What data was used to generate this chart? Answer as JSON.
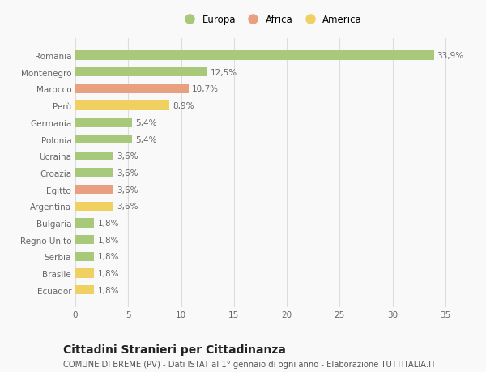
{
  "categories": [
    "Romania",
    "Montenegro",
    "Marocco",
    "Perù",
    "Germania",
    "Polonia",
    "Ucraina",
    "Croazia",
    "Egitto",
    "Argentina",
    "Bulgaria",
    "Regno Unito",
    "Serbia",
    "Brasile",
    "Ecuador"
  ],
  "values": [
    33.9,
    12.5,
    10.7,
    8.9,
    5.4,
    5.4,
    3.6,
    3.6,
    3.6,
    3.6,
    1.8,
    1.8,
    1.8,
    1.8,
    1.8
  ],
  "continents": [
    "Europa",
    "Europa",
    "Africa",
    "America",
    "Europa",
    "Europa",
    "Europa",
    "Europa",
    "Africa",
    "America",
    "Europa",
    "Europa",
    "Europa",
    "America",
    "America"
  ],
  "colors": {
    "Europa": "#a8c87a",
    "Africa": "#e8a080",
    "America": "#f0d060"
  },
  "xlim": [
    0,
    37
  ],
  "xticks": [
    0,
    5,
    10,
    15,
    20,
    25,
    30,
    35
  ],
  "title": "Cittadini Stranieri per Cittadinanza",
  "subtitle": "COMUNE DI BREME (PV) - Dati ISTAT al 1° gennaio di ogni anno - Elaborazione TUTTITALIA.IT",
  "background_color": "#f9f9f9",
  "grid_color": "#dddddd",
  "bar_height": 0.55,
  "label_fontsize": 7.5,
  "tick_fontsize": 7.5,
  "title_fontsize": 10,
  "subtitle_fontsize": 7.2,
  "legend_fontsize": 8.5
}
